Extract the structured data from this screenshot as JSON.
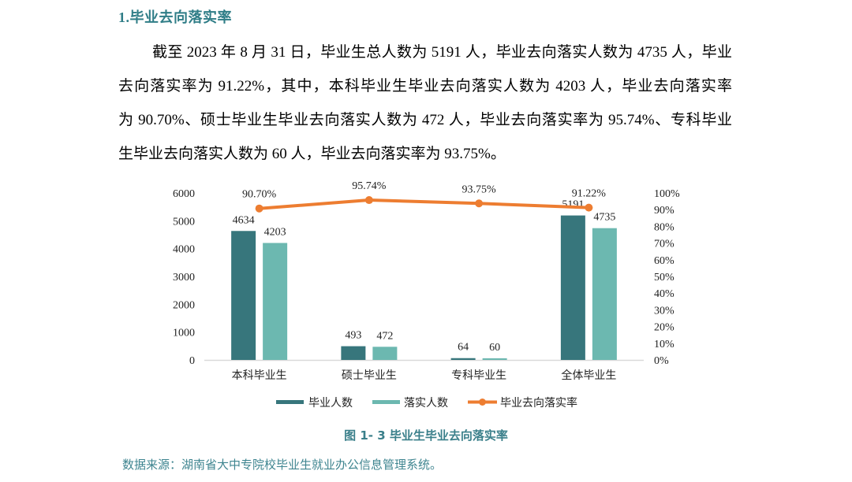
{
  "section": {
    "title": "1.毕业去向落实率"
  },
  "paragraph": {
    "lines": [
      "截至 2023 年 8 月 31 日，毕业生总人数为 5191 人，毕业去向落实人数为 4735 人，毕业",
      "去向落实率为  91.22%，其中，本科毕业生毕业去向落实人数为  4203  人，毕业去向落实率",
      "为 90.70%、硕士毕业生毕业去向落实人数为 472 人，毕业去向落实率为 95.74%、专科毕业",
      "生毕业去向落实人数为 60 人，毕业去向落实率为 93.75%。"
    ]
  },
  "figure": {
    "caption": "图 1- 3  毕业生毕业去向落实率",
    "source": "数据来源：湖南省大中专院校毕业生就业办公信息管理系统。"
  },
  "chart_data": {
    "type": "bar+line",
    "title": "图 1- 3  毕业生毕业去向落实率",
    "categories": [
      "本科毕业生",
      "硕士毕业生",
      "专科毕业生",
      "全体毕业生"
    ],
    "series": [
      {
        "name": "毕业人数",
        "type": "bar",
        "axis": "left",
        "color": "#37767c",
        "values": [
          4634,
          493,
          64,
          5191
        ]
      },
      {
        "name": "落实人数",
        "type": "bar",
        "axis": "left",
        "color": "#6cb8b0",
        "values": [
          4203,
          472,
          60,
          4735
        ]
      },
      {
        "name": "毕业去向落实率",
        "type": "line",
        "axis": "right",
        "color": "#ed7d31",
        "values": [
          90.7,
          95.74,
          93.75,
          91.22
        ],
        "labels": [
          "90.70%",
          "95.74%",
          "93.75%",
          "91.22%"
        ]
      }
    ],
    "xlabel": "",
    "ylabel": "",
    "ylim": [
      0,
      6000
    ],
    "yticks": [
      "0",
      "1000",
      "2000",
      "3000",
      "4000",
      "5000",
      "6000"
    ],
    "y2lim": [
      0,
      100
    ],
    "y2ticks": [
      "0%",
      "10%",
      "20%",
      "30%",
      "40%",
      "50%",
      "60%",
      "70%",
      "80%",
      "90%",
      "100%"
    ],
    "grid": false,
    "legend_position": "bottom",
    "axis_line_color": "#d9d9d9"
  }
}
